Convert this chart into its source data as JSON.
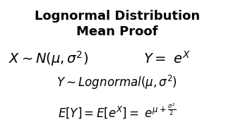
{
  "title_line1": "Lognormal Distribution",
  "title_line2": "Mean Proof",
  "title_fontsize": 13,
  "title_fontweight": "bold",
  "bg_color": "#ffffff",
  "text_color": "#000000",
  "eq1_left": "$X \\sim N(\\mu, \\sigma^2)$",
  "eq1_right": "$Y = \\ e^{X}$",
  "eq2": "$Y \\sim Lognormal(\\mu, \\sigma^2)$",
  "eq3": "$E[Y] = E[e^{X}] = \\ e^{\\mu + \\frac{\\sigma^2}{2}}$",
  "eq_fontsize": 14,
  "eq2_fontsize": 12,
  "eq3_fontsize": 12
}
